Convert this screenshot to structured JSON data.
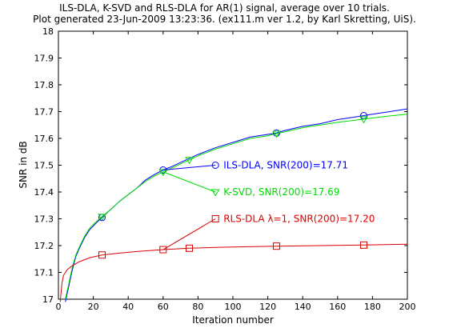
{
  "chart_data": {
    "type": "line",
    "title": [
      "ILS-DLA, K-SVD and RLS-DLA for AR(1) signal, average over 10 trials.",
      "Plot generated 23-Jun-2009 13:23:36. (ex111.m ver 1.2, by Karl Skretting, UiS)."
    ],
    "xlabel": "Iteration number",
    "ylabel": "SNR in dB",
    "xlim": [
      0,
      200
    ],
    "ylim": [
      17,
      18
    ],
    "xticks": [
      0,
      20,
      40,
      60,
      80,
      100,
      120,
      140,
      160,
      180,
      200
    ],
    "yticks": [
      17,
      17.1,
      17.2,
      17.3,
      17.4,
      17.5,
      17.6,
      17.7,
      17.8,
      17.9,
      18
    ],
    "grid": false,
    "series": [
      {
        "name": "ILS-DLA",
        "color": "#0000ff",
        "marker": "circle",
        "x": [
          4,
          6,
          8,
          10,
          12,
          15,
          18,
          21,
          25,
          30,
          35,
          40,
          45,
          50,
          55,
          60,
          65,
          70,
          75,
          80,
          90,
          100,
          110,
          120,
          125,
          130,
          140,
          150,
          160,
          170,
          175,
          180,
          190,
          200
        ],
        "y": [
          16.99,
          17.05,
          17.11,
          17.16,
          17.19,
          17.23,
          17.26,
          17.28,
          17.305,
          17.335,
          17.365,
          17.39,
          17.415,
          17.445,
          17.465,
          17.482,
          17.495,
          17.51,
          17.525,
          17.54,
          17.565,
          17.585,
          17.605,
          17.615,
          17.62,
          17.63,
          17.645,
          17.655,
          17.67,
          17.68,
          17.685,
          17.69,
          17.7,
          17.71
        ],
        "markers_x": [
          25,
          60,
          125,
          175
        ],
        "markers_y": [
          17.305,
          17.482,
          17.62,
          17.685
        ],
        "annotation": {
          "text": "ILS-DLA, SNR(200)=17.71",
          "from": [
            60,
            17.482
          ],
          "to": [
            90,
            17.5
          ]
        }
      },
      {
        "name": "K-SVD",
        "color": "#00dd00",
        "marker": "triangle-down",
        "x": [
          4,
          6,
          8,
          10,
          12,
          15,
          18,
          21,
          25,
          30,
          35,
          40,
          45,
          50,
          55,
          60,
          65,
          70,
          75,
          80,
          90,
          100,
          110,
          120,
          125,
          130,
          140,
          150,
          160,
          170,
          175,
          180,
          190,
          200
        ],
        "y": [
          17.0,
          17.06,
          17.12,
          17.165,
          17.195,
          17.235,
          17.265,
          17.285,
          17.308,
          17.335,
          17.365,
          17.39,
          17.415,
          17.44,
          17.46,
          17.475,
          17.49,
          17.505,
          17.52,
          17.535,
          17.56,
          17.58,
          17.6,
          17.61,
          17.618,
          17.625,
          17.64,
          17.65,
          17.66,
          17.668,
          17.672,
          17.676,
          17.684,
          17.69
        ],
        "markers_x": [
          25,
          60,
          75,
          125,
          175
        ],
        "markers_y": [
          17.308,
          17.475,
          17.52,
          17.618,
          17.672
        ],
        "annotation": {
          "text": "K-SVD, SNR(200)=17.69",
          "from": [
            60,
            17.475
          ],
          "to": [
            90,
            17.4
          ]
        }
      },
      {
        "name": "RLS-DLA λ=1",
        "color": "#dd0000",
        "marker": "square",
        "x": [
          1,
          2,
          3,
          5,
          8,
          12,
          18,
          25,
          35,
          45,
          60,
          75,
          90,
          100,
          125,
          150,
          175,
          200
        ],
        "y": [
          16.99,
          17.06,
          17.09,
          17.11,
          17.125,
          17.14,
          17.155,
          17.165,
          17.172,
          17.178,
          17.185,
          17.19,
          17.193,
          17.195,
          17.198,
          17.2,
          17.202,
          17.205
        ],
        "markers_x": [
          25,
          60,
          75,
          125,
          175
        ],
        "markers_y": [
          17.165,
          17.185,
          17.19,
          17.198,
          17.202
        ],
        "annotation": {
          "text": "RLS-DLA λ=1, SNR(200)=17.20",
          "from": [
            60,
            17.185
          ],
          "to": [
            90,
            17.3
          ]
        }
      }
    ]
  }
}
